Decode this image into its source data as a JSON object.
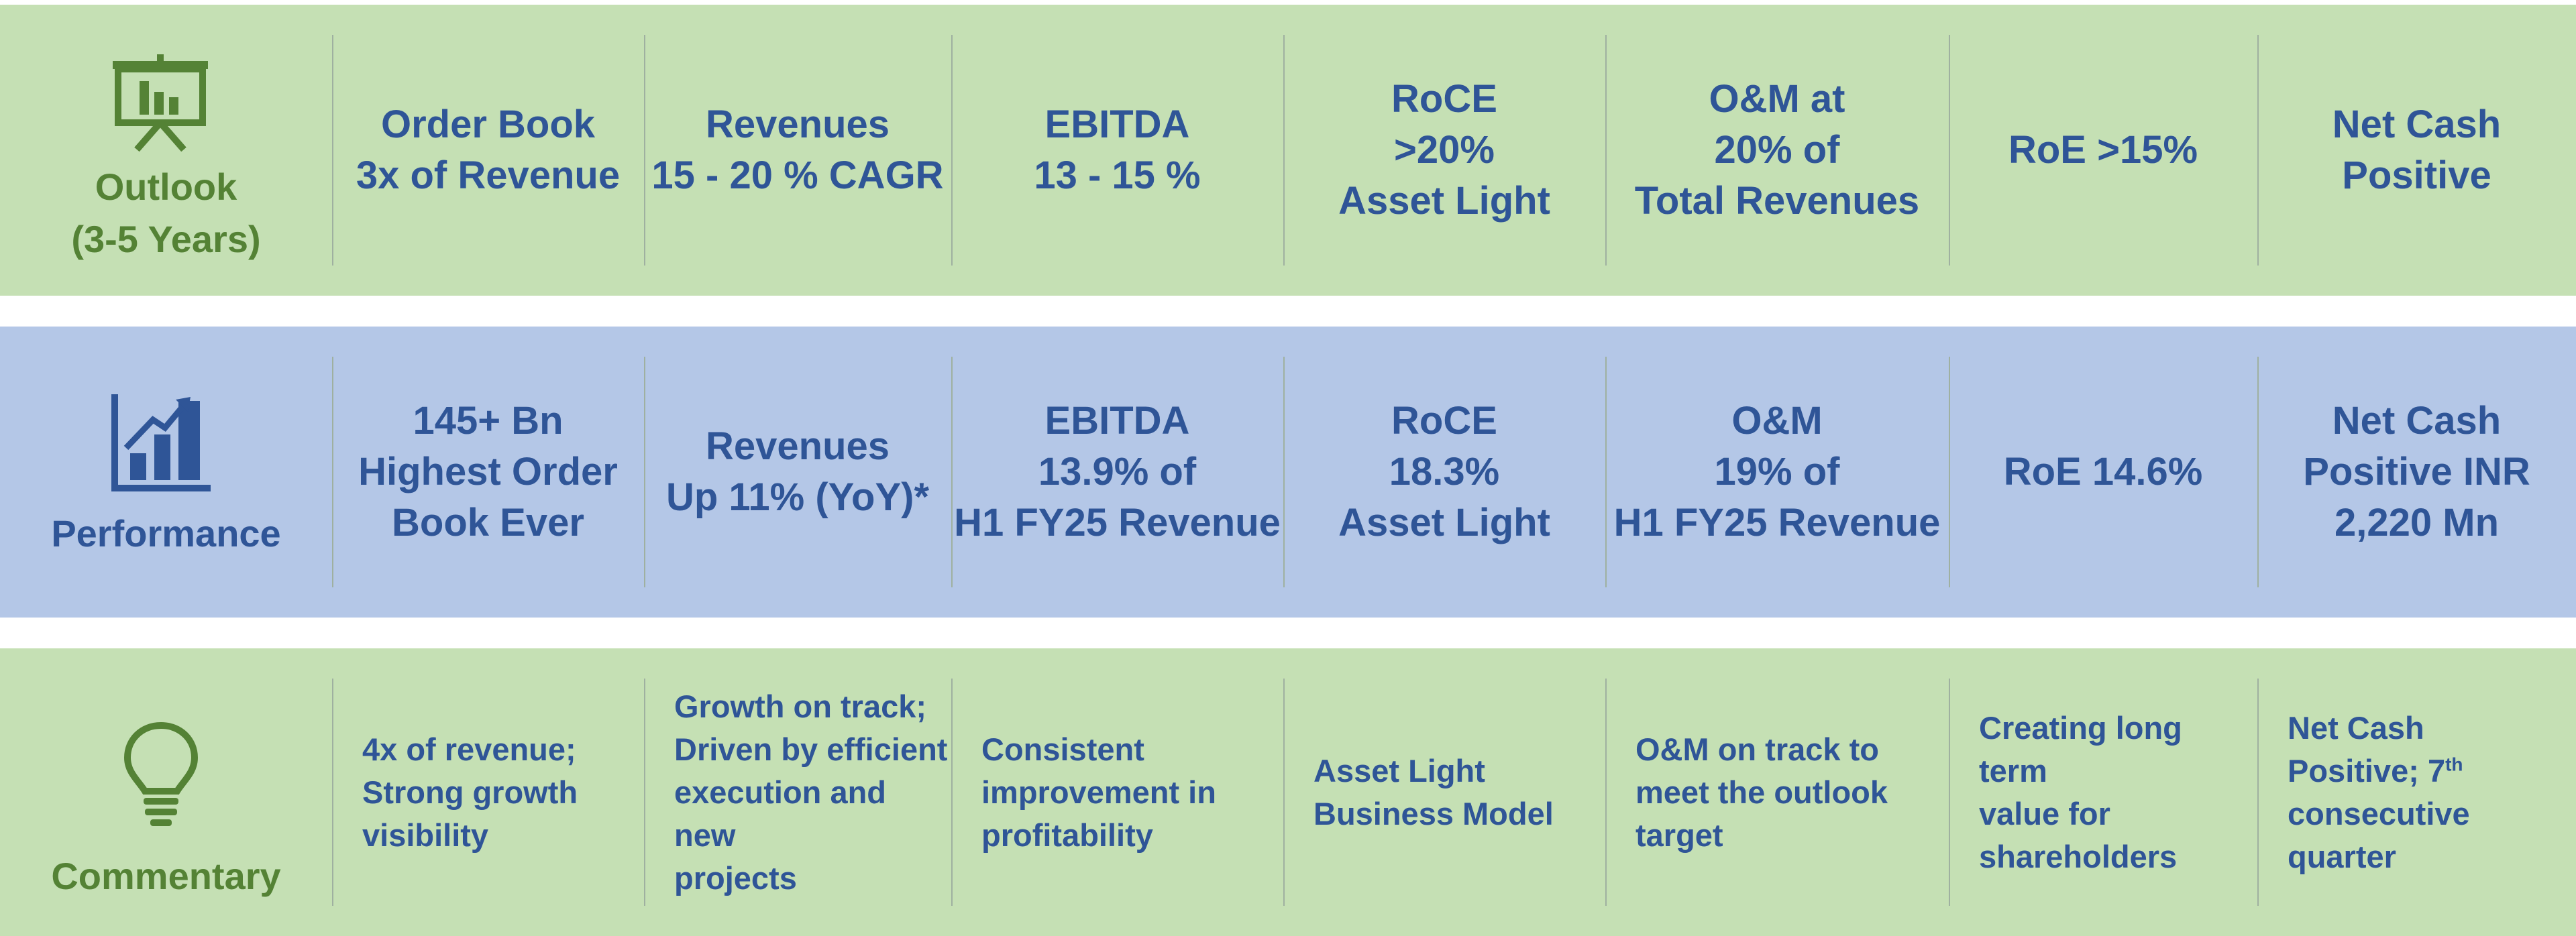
{
  "rows": [
    {
      "label": [
        "Outlook",
        "(3-5 Years)"
      ],
      "cells": [
        [
          "Order Book",
          "3x of Revenue"
        ],
        [
          "Revenues",
          "15 - 20 % CAGR"
        ],
        [
          "EBITDA",
          "13 - 15 %"
        ],
        [
          "RoCE",
          ">20%",
          "Asset Light"
        ],
        [
          "O&M at",
          "20% of",
          "Total Revenues"
        ],
        [
          "RoE >15%"
        ],
        [
          "Net Cash",
          "Positive"
        ]
      ]
    },
    {
      "label": [
        "Performance"
      ],
      "cells": [
        [
          "145+ Bn",
          "Highest Order",
          "Book Ever"
        ],
        [
          "Revenues",
          "Up 11% (YoY)*"
        ],
        [
          "EBITDA",
          "13.9% of",
          "H1 FY25 Revenue"
        ],
        [
          "RoCE",
          "18.3%",
          "Asset Light"
        ],
        [
          "O&M",
          "19% of",
          "H1 FY25 Revenue"
        ],
        [
          "RoE 14.6%"
        ],
        [
          "Net Cash",
          "Positive INR",
          "2,220 Mn"
        ]
      ]
    },
    {
      "label": [
        "Commentary"
      ],
      "cells": [
        [
          "4x of revenue;",
          "Strong growth",
          "visibility"
        ],
        [
          "Growth on track;",
          "Driven by efficient",
          "execution and new",
          "projects"
        ],
        [
          "Consistent",
          "improvement in",
          "profitability"
        ],
        [
          "Asset Light",
          "Business Model"
        ],
        [
          "O&M on track to",
          "meet the outlook",
          "target"
        ],
        [
          "Creating long term",
          "value for",
          "shareholders"
        ],
        [
          "Net Cash",
          {
            "text": "Positive; 7",
            "sup": "th"
          },
          "consecutive",
          "quarter"
        ]
      ]
    }
  ]
}
